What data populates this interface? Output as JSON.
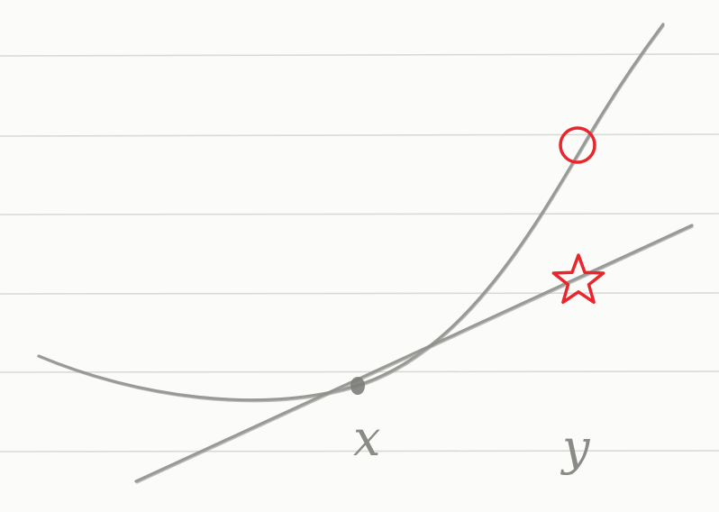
{
  "labels": {
    "x": "x",
    "y": "y"
  },
  "markers": {
    "circle": {
      "name": "circle-marker",
      "color": "#e8262b"
    },
    "star": {
      "name": "star-marker",
      "color": "#e8262b"
    }
  },
  "colors": {
    "pencil": "#8e8e8b",
    "paper": "#fbfbfa",
    "ruled_line": "#d9d9d6",
    "marker": "#e8262b"
  }
}
